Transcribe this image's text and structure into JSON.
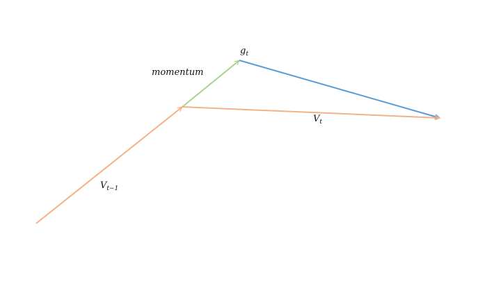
{
  "colors": {
    "v_prev": "#f4b183",
    "momentum": "#a9d18e",
    "gradient": "#5b9bd5",
    "v_t": "#f4b183",
    "text": "#111111"
  },
  "labels": {
    "momentum": "momentum",
    "g_main": "g",
    "g_sub": "t",
    "vt_main": "V",
    "vt_sub": "t",
    "vprev_main": "V",
    "vprev_sub": "t−1"
  }
}
